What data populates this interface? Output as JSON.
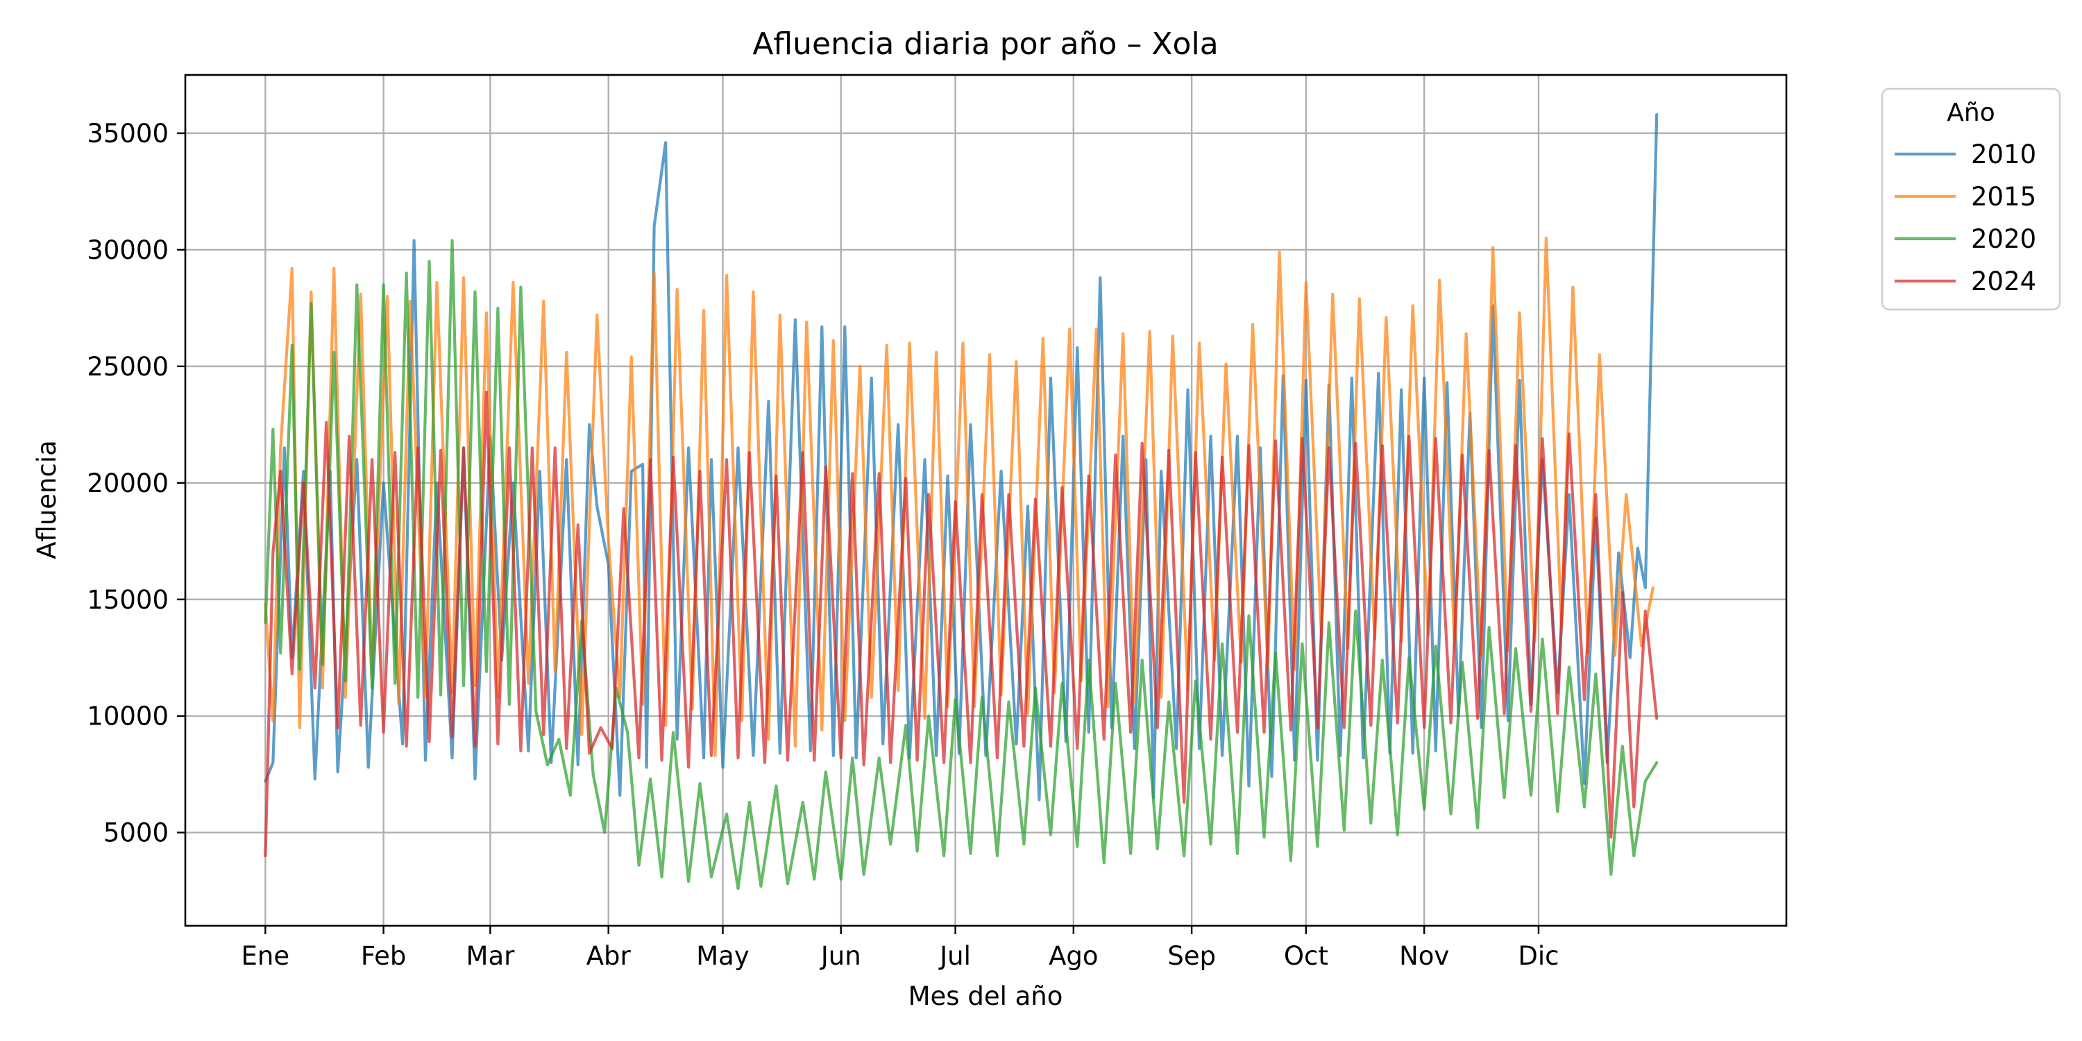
{
  "chart_data": {
    "type": "line",
    "title": "Afluencia diaria por año – Xola",
    "xlabel": "Mes del año",
    "ylabel": "Afluencia",
    "x_unit": "día del año",
    "xlim": [
      -20,
      400
    ],
    "ylim": [
      1000,
      37500
    ],
    "x_ticks": [
      {
        "label": "Ene",
        "value": 1
      },
      {
        "label": "Feb",
        "value": 32
      },
      {
        "label": "Mar",
        "value": 60
      },
      {
        "label": "Abr",
        "value": 91
      },
      {
        "label": "May",
        "value": 121
      },
      {
        "label": "Jun",
        "value": 152
      },
      {
        "label": "Jul",
        "value": 182
      },
      {
        "label": "Ago",
        "value": 213
      },
      {
        "label": "Sep",
        "value": 244
      },
      {
        "label": "Oct",
        "value": 274
      },
      {
        "label": "Nov",
        "value": 305
      },
      {
        "label": "Dic",
        "value": 335
      }
    ],
    "y_ticks": [
      5000,
      10000,
      15000,
      20000,
      25000,
      30000,
      35000
    ],
    "grid": true,
    "legend": {
      "title": "Año",
      "placement": "outside-top-right"
    },
    "series": [
      {
        "name": "2010",
        "color": "#1f77b4",
        "x": [
          1,
          3,
          6,
          8,
          11,
          14,
          18,
          20,
          25,
          28,
          32,
          37,
          40,
          43,
          46,
          50,
          53,
          56,
          60,
          63,
          66,
          70,
          73,
          76,
          80,
          83,
          86,
          88,
          91,
          94,
          97,
          100,
          101,
          103,
          106,
          109,
          112,
          116,
          118,
          121,
          125,
          129,
          133,
          136,
          140,
          144,
          147,
          150,
          153,
          156,
          160,
          163,
          167,
          170,
          174,
          177,
          180,
          183,
          186,
          190,
          194,
          198,
          201,
          204,
          207,
          211,
          214,
          217,
          220,
          223,
          226,
          229,
          232,
          234,
          236,
          240,
          243,
          246,
          249,
          252,
          256,
          259,
          262,
          265,
          268,
          271,
          274,
          277,
          280,
          283,
          286,
          289,
          293,
          296,
          299,
          302,
          305,
          308,
          311,
          314,
          317,
          320,
          323,
          327,
          330,
          333,
          336,
          340,
          343,
          347,
          350,
          353,
          356,
          359,
          361,
          363,
          366
        ],
        "values": [
          7200,
          8000,
          21500,
          12500,
          20500,
          7300,
          20500,
          7600,
          21000,
          7800,
          20000,
          8800,
          30400,
          8100,
          20000,
          8200,
          21500,
          7300,
          22000,
          12400,
          20000,
          8500,
          20500,
          8000,
          21000,
          7900,
          22500,
          19000,
          16500,
          6600,
          20500,
          20800,
          7800,
          31000,
          34600,
          9000,
          21500,
          8200,
          21000,
          7800,
          21500,
          8300,
          23500,
          8400,
          27000,
          8500,
          26700,
          8300,
          26700,
          8200,
          24500,
          8800,
          22500,
          8200,
          21000,
          8300,
          20300,
          8400,
          22500,
          8300,
          20500,
          8800,
          19000,
          6400,
          24500,
          8900,
          25800,
          9300,
          28800,
          9500,
          22000,
          8600,
          21000,
          6500,
          20500,
          8600,
          24000,
          8600,
          22000,
          8300,
          22000,
          7000,
          21500,
          7400,
          24600,
          8100,
          24400,
          8100,
          24200,
          8300,
          24500,
          8200,
          24700,
          8400,
          24000,
          8400,
          24500,
          8500,
          24300,
          10000,
          23000,
          9500,
          27600,
          9800,
          24400,
          10500,
          21000,
          11000,
          19500,
          7100,
          18500,
          8000,
          17000,
          12500,
          17200,
          15500,
          35800
        ]
      },
      {
        "name": "2015",
        "color": "#ff7f0e",
        "x": [
          1,
          3,
          5,
          8,
          10,
          13,
          16,
          19,
          22,
          26,
          29,
          33,
          36,
          39,
          43,
          46,
          50,
          53,
          56,
          59,
          62,
          66,
          70,
          74,
          77,
          80,
          84,
          88,
          91,
          94,
          97,
          100,
          103,
          106,
          109,
          113,
          116,
          119,
          122,
          126,
          129,
          133,
          136,
          140,
          143,
          147,
          150,
          153,
          157,
          160,
          164,
          167,
          170,
          174,
          177,
          180,
          184,
          187,
          191,
          194,
          198,
          201,
          205,
          208,
          212,
          215,
          219,
          222,
          226,
          229,
          233,
          236,
          239,
          243,
          246,
          250,
          253,
          257,
          260,
          264,
          267,
          271,
          274,
          278,
          281,
          285,
          288,
          292,
          295,
          299,
          302,
          306,
          309,
          313,
          316,
          320,
          323,
          327,
          330,
          334,
          337,
          341,
          344,
          348,
          351,
          355,
          358,
          362,
          365
        ],
        "values": [
          14800,
          9800,
          21500,
          29200,
          9500,
          28200,
          11200,
          29200,
          10800,
          28100,
          11800,
          28000,
          10500,
          27800,
          10800,
          28600,
          11000,
          28800,
          11300,
          27300,
          10800,
          28600,
          11400,
          27800,
          11900,
          25600,
          9200,
          27200,
          17500,
          10800,
          25400,
          10500,
          29000,
          9600,
          28300,
          10300,
          27400,
          8300,
          28900,
          9800,
          28200,
          9000,
          27200,
          8700,
          26900,
          9400,
          26100,
          9800,
          25000,
          10800,
          25900,
          11100,
          26000,
          9900,
          25600,
          10400,
          26000,
          10400,
          25500,
          10900,
          25200,
          10100,
          26200,
          11000,
          26600,
          11500,
          26600,
          10400,
          26400,
          10600,
          26500,
          10800,
          26300,
          11100,
          26000,
          12400,
          25100,
          12300,
          26800,
          12100,
          29900,
          12000,
          28600,
          13500,
          28100,
          12900,
          27900,
          13300,
          27100,
          13200,
          27600,
          13500,
          28700,
          12900,
          26400,
          12600,
          30100,
          12800,
          27300,
          13200,
          30500,
          13800,
          28400,
          12700,
          25500,
          12600,
          19500,
          13000,
          15500
        ]
      },
      {
        "name": "2020",
        "color": "#2ca02c",
        "x": [
          1,
          3,
          5,
          8,
          10,
          13,
          16,
          19,
          22,
          25,
          29,
          32,
          35,
          38,
          41,
          44,
          47,
          50,
          53,
          56,
          59,
          62,
          65,
          68,
          72,
          75,
          78,
          81,
          84,
          87,
          90,
          93,
          96,
          99,
          102,
          105,
          108,
          112,
          115,
          118,
          122,
          125,
          128,
          131,
          135,
          138,
          142,
          145,
          148,
          152,
          155,
          158,
          162,
          165,
          169,
          172,
          175,
          179,
          182,
          186,
          189,
          193,
          196,
          200,
          203,
          207,
          210,
          214,
          217,
          221,
          224,
          228,
          231,
          235,
          238,
          242,
          245,
          249,
          252,
          256,
          259,
          263,
          266,
          270,
          273,
          277,
          280,
          284,
          287,
          291,
          294,
          298,
          301,
          305,
          308,
          312,
          315,
          319,
          322,
          326,
          329,
          333,
          336,
          340,
          343,
          347,
          350,
          354,
          357,
          360,
          363,
          366
        ],
        "values": [
          14000,
          22300,
          12700,
          25900,
          12000,
          27700,
          12200,
          25600,
          11500,
          28500,
          11200,
          28500,
          11400,
          29000,
          10800,
          29500,
          10900,
          30400,
          11300,
          28200,
          11900,
          27500,
          10500,
          28400,
          10200,
          7900,
          9000,
          6600,
          14100,
          7500,
          5000,
          11200,
          9300,
          3600,
          7300,
          3100,
          9300,
          2900,
          7100,
          3100,
          5800,
          2600,
          6300,
          2700,
          7000,
          2800,
          6300,
          3000,
          7600,
          3000,
          8200,
          3200,
          8200,
          4500,
          9600,
          4200,
          10000,
          4000,
          10700,
          4100,
          10800,
          4000,
          10600,
          4500,
          11200,
          4900,
          11400,
          4400,
          12400,
          3700,
          11400,
          4100,
          12400,
          4300,
          10600,
          4000,
          11500,
          4500,
          13100,
          4100,
          14300,
          4800,
          12700,
          3800,
          13100,
          4400,
          14000,
          5100,
          14500,
          5400,
          12400,
          4900,
          12500,
          6000,
          13000,
          5800,
          12300,
          5200,
          13800,
          6500,
          12900,
          6600,
          13300,
          5900,
          12100,
          6100,
          11800,
          3200,
          8700,
          4000,
          7200,
          8000
        ]
      },
      {
        "name": "2024",
        "color": "#d62728",
        "x": [
          1,
          3,
          5,
          8,
          11,
          14,
          17,
          20,
          23,
          26,
          29,
          32,
          35,
          38,
          41,
          44,
          47,
          50,
          53,
          56,
          59,
          62,
          65,
          68,
          71,
          74,
          77,
          80,
          83,
          86,
          89,
          92,
          95,
          99,
          102,
          105,
          108,
          112,
          115,
          118,
          122,
          125,
          128,
          132,
          135,
          138,
          142,
          145,
          148,
          152,
          155,
          158,
          162,
          165,
          169,
          172,
          175,
          179,
          182,
          186,
          189,
          193,
          196,
          200,
          203,
          207,
          210,
          214,
          217,
          221,
          224,
          228,
          231,
          235,
          238,
          242,
          245,
          249,
          252,
          256,
          259,
          263,
          266,
          270,
          273,
          277,
          280,
          284,
          287,
          291,
          294,
          298,
          301,
          305,
          308,
          312,
          315,
          319,
          322,
          326,
          329,
          333,
          336,
          340,
          343,
          347,
          350,
          354,
          357,
          360,
          363,
          366
        ],
        "values": [
          4000,
          17000,
          20500,
          11800,
          20000,
          11200,
          22600,
          9500,
          22000,
          9600,
          21000,
          9300,
          21300,
          8700,
          21500,
          8900,
          21400,
          9100,
          21500,
          8700,
          23900,
          8800,
          21500,
          8500,
          21500,
          9200,
          21500,
          8600,
          18200,
          8400,
          9500,
          8600,
          18900,
          8200,
          21000,
          8100,
          21100,
          7800,
          20500,
          8300,
          21000,
          8200,
          21300,
          8000,
          20300,
          8100,
          21300,
          8100,
          20700,
          8200,
          20400,
          7900,
          20400,
          8000,
          20200,
          8100,
          19500,
          8000,
          19200,
          8000,
          19500,
          8200,
          19500,
          8700,
          19300,
          8700,
          19800,
          8600,
          20300,
          9000,
          21200,
          9300,
          21700,
          9500,
          21400,
          6300,
          21300,
          9000,
          21100,
          9300,
          21600,
          9300,
          21800,
          9400,
          21900,
          9500,
          21500,
          9500,
          21700,
          9600,
          21600,
          9700,
          22000,
          9500,
          21900,
          9700,
          21200,
          9900,
          21400,
          10100,
          21600,
          10200,
          21900,
          10100,
          22100,
          10700,
          19500,
          4800,
          15300,
          6100,
          14500,
          9900
        ]
      }
    ]
  }
}
